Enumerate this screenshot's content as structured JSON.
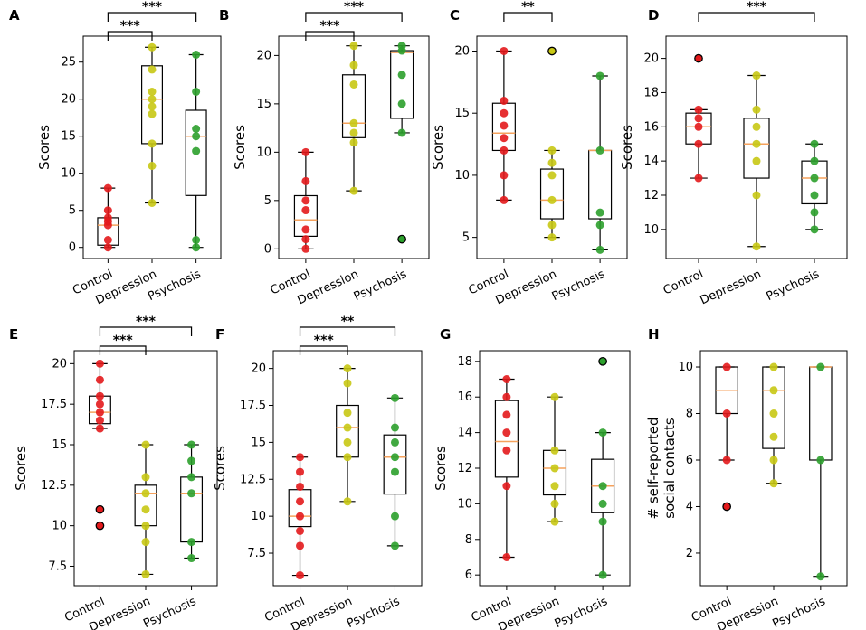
{
  "colors": {
    "control": "#e31a1c",
    "depression": "#c8c814",
    "psychosis": "#2ca02c",
    "median": "#f5a25d"
  },
  "chart_data": [
    {
      "label": "A",
      "type": "box",
      "ylabel": "Scores",
      "categories": [
        "Control",
        "Depression",
        "Psychosis"
      ],
      "ylim": [
        -1.5,
        28.5
      ],
      "yticks": [
        0,
        5,
        10,
        15,
        20,
        25
      ],
      "boxes": [
        {
          "whislo": 0,
          "q1": 0.3,
          "med": 3,
          "q3": 4,
          "whishi": 8,
          "points": [
            0,
            1,
            3,
            3.5,
            4,
            5,
            8
          ],
          "outliers": []
        },
        {
          "whislo": 6,
          "q1": 14,
          "med": 20,
          "q3": 24.5,
          "whishi": 27,
          "points": [
            6,
            11,
            14,
            18,
            19,
            20,
            21,
            24,
            27
          ],
          "outliers": []
        },
        {
          "whislo": 0,
          "q1": 7,
          "med": 15,
          "q3": 18.5,
          "whishi": 26,
          "points": [
            0,
            1,
            13,
            15,
            16,
            21,
            26
          ],
          "outliers": []
        }
      ],
      "brackets": [
        {
          "from": 0,
          "to": 1,
          "label": "***"
        },
        {
          "from": 0,
          "to": 2,
          "label": "***"
        }
      ]
    },
    {
      "label": "B",
      "type": "box",
      "ylabel": "Scores",
      "categories": [
        "Control",
        "Depression",
        "Psychosis"
      ],
      "ylim": [
        -1,
        22
      ],
      "yticks": [
        0,
        5,
        10,
        15,
        20
      ],
      "boxes": [
        {
          "whislo": 0,
          "q1": 1.3,
          "med": 3,
          "q3": 5.5,
          "whishi": 10,
          "points": [
            0,
            1,
            2,
            4,
            5,
            7,
            10
          ],
          "outliers": []
        },
        {
          "whislo": 6,
          "q1": 11.5,
          "med": 13,
          "q3": 18,
          "whishi": 21,
          "points": [
            6,
            11,
            12,
            13,
            17,
            19,
            21
          ],
          "outliers": []
        },
        {
          "whislo": 12,
          "q1": 13.5,
          "med": 20.3,
          "q3": 20.5,
          "whishi": 21,
          "points": [
            12,
            15,
            18,
            20.5,
            21
          ],
          "outliers": [
            1
          ]
        }
      ],
      "brackets": [
        {
          "from": 0,
          "to": 1,
          "label": "***"
        },
        {
          "from": 0,
          "to": 2,
          "label": "***"
        }
      ]
    },
    {
      "label": "C",
      "type": "box",
      "ylabel": "Scores",
      "categories": [
        "Control",
        "Depression",
        "Psychosis"
      ],
      "ylim": [
        3.3,
        21.2
      ],
      "yticks": [
        5,
        10,
        15,
        20
      ],
      "boxes": [
        {
          "whislo": 8,
          "q1": 12,
          "med": 13.4,
          "q3": 15.8,
          "whishi": 20,
          "points": [
            8,
            10,
            12,
            13,
            14,
            15,
            16,
            20
          ],
          "outliers": []
        },
        {
          "whislo": 5,
          "q1": 6.5,
          "med": 8,
          "q3": 10.5,
          "whishi": 12,
          "points": [
            5,
            6,
            8,
            10,
            11,
            12
          ],
          "outliers": [
            20
          ]
        },
        {
          "whislo": 4,
          "q1": 6.5,
          "med": 12,
          "q3": 12,
          "whishi": 18,
          "points": [
            4,
            6,
            7,
            12,
            18
          ],
          "outliers": []
        }
      ],
      "brackets": [
        {
          "from": 0,
          "to": 1,
          "label": "**"
        }
      ]
    },
    {
      "label": "D",
      "type": "box",
      "ylabel": "Scores",
      "categories": [
        "Control",
        "Depression",
        "Psychosis"
      ],
      "ylim": [
        8.3,
        21.3
      ],
      "yticks": [
        10,
        12,
        14,
        16,
        18,
        20
      ],
      "boxes": [
        {
          "whislo": 13,
          "q1": 15,
          "med": 16,
          "q3": 16.8,
          "whishi": 17,
          "points": [
            13,
            15,
            16,
            16.5,
            17
          ],
          "outliers": [
            20
          ]
        },
        {
          "whislo": 9,
          "q1": 13,
          "med": 15,
          "q3": 16.5,
          "whishi": 19,
          "points": [
            9,
            12,
            14,
            15,
            16,
            17,
            19
          ],
          "outliers": []
        },
        {
          "whislo": 10,
          "q1": 11.5,
          "med": 13,
          "q3": 14,
          "whishi": 15,
          "points": [
            10,
            11,
            12,
            13,
            14,
            15
          ],
          "outliers": []
        }
      ],
      "brackets": [
        {
          "from": 0,
          "to": 2,
          "label": "***"
        }
      ]
    },
    {
      "label": "E",
      "type": "box",
      "ylabel": "Scores",
      "categories": [
        "Control",
        "Depression",
        "Psychosis"
      ],
      "ylim": [
        6.3,
        20.8
      ],
      "yticks": [
        7.5,
        10.0,
        12.5,
        15.0,
        17.5,
        20.0
      ],
      "boxes": [
        {
          "whislo": 16,
          "q1": 16.3,
          "med": 17,
          "q3": 18,
          "whishi": 20,
          "points": [
            16,
            16.5,
            17,
            17.5,
            18,
            19,
            20
          ],
          "outliers": [
            10,
            11
          ]
        },
        {
          "whislo": 7,
          "q1": 10,
          "med": 12,
          "q3": 12.5,
          "whishi": 15,
          "points": [
            7,
            9,
            10,
            11,
            12,
            13,
            15
          ],
          "outliers": []
        },
        {
          "whislo": 8,
          "q1": 9,
          "med": 12,
          "q3": 13,
          "whishi": 15,
          "points": [
            8,
            9,
            12,
            13,
            14,
            15
          ],
          "outliers": []
        }
      ],
      "brackets": [
        {
          "from": 0,
          "to": 1,
          "label": "***"
        },
        {
          "from": 0,
          "to": 2,
          "label": "***"
        }
      ]
    },
    {
      "label": "F",
      "type": "box",
      "ylabel": "Scores",
      "categories": [
        "Control",
        "Depression",
        "Psychosis"
      ],
      "ylim": [
        5.3,
        21.2
      ],
      "yticks": [
        7.5,
        10.0,
        12.5,
        15.0,
        17.5,
        20.0
      ],
      "boxes": [
        {
          "whislo": 6,
          "q1": 9.3,
          "med": 10,
          "q3": 11.8,
          "whishi": 14,
          "points": [
            6,
            8,
            9,
            10,
            11,
            12,
            13,
            14
          ],
          "outliers": []
        },
        {
          "whislo": 11,
          "q1": 14,
          "med": 16,
          "q3": 17.5,
          "whishi": 20,
          "points": [
            11,
            14,
            15,
            16,
            17,
            19,
            20
          ],
          "outliers": []
        },
        {
          "whislo": 8,
          "q1": 11.5,
          "med": 14,
          "q3": 15.5,
          "whishi": 18,
          "points": [
            8,
            10,
            13,
            14,
            15,
            16,
            18
          ],
          "outliers": []
        }
      ],
      "brackets": [
        {
          "from": 0,
          "to": 1,
          "label": "***"
        },
        {
          "from": 0,
          "to": 2,
          "label": "**"
        }
      ]
    },
    {
      "label": "G",
      "type": "box",
      "ylabel": "Scores",
      "categories": [
        "Control",
        "Depression",
        "Psychosis"
      ],
      "ylim": [
        5.4,
        18.6
      ],
      "yticks": [
        6,
        8,
        10,
        12,
        14,
        16,
        18
      ],
      "boxes": [
        {
          "whislo": 7,
          "q1": 11.5,
          "med": 13.5,
          "q3": 15.8,
          "whishi": 17,
          "points": [
            7,
            11,
            13,
            14,
            15,
            16,
            17
          ],
          "outliers": []
        },
        {
          "whislo": 9,
          "q1": 10.5,
          "med": 12,
          "q3": 13,
          "whishi": 16,
          "points": [
            9,
            10,
            11,
            12,
            13,
            16
          ],
          "outliers": []
        },
        {
          "whislo": 6,
          "q1": 9.5,
          "med": 11,
          "q3": 12.5,
          "whishi": 14,
          "points": [
            6,
            9,
            10,
            11,
            14
          ],
          "outliers": [
            18
          ]
        }
      ],
      "brackets": []
    },
    {
      "label": "H",
      "type": "box",
      "ylabel": "# self-reported\nsocial contacts",
      "categories": [
        "Control",
        "Depression",
        "Psychosis"
      ],
      "ylim": [
        0.6,
        10.7
      ],
      "yticks": [
        2,
        4,
        6,
        8,
        10
      ],
      "boxes": [
        {
          "whislo": 6,
          "q1": 8,
          "med": 9,
          "q3": 10,
          "whishi": 10,
          "points": [
            6,
            8,
            10
          ],
          "outliers": [
            4
          ]
        },
        {
          "whislo": 5,
          "q1": 6.5,
          "med": 9,
          "q3": 10,
          "whishi": 10,
          "points": [
            5,
            6,
            7,
            8,
            9,
            10
          ],
          "outliers": []
        },
        {
          "whislo": 1,
          "q1": 6,
          "med": 10,
          "q3": 10,
          "whishi": 10,
          "points": [
            1,
            6,
            10
          ],
          "outliers": []
        }
      ],
      "brackets": []
    }
  ]
}
